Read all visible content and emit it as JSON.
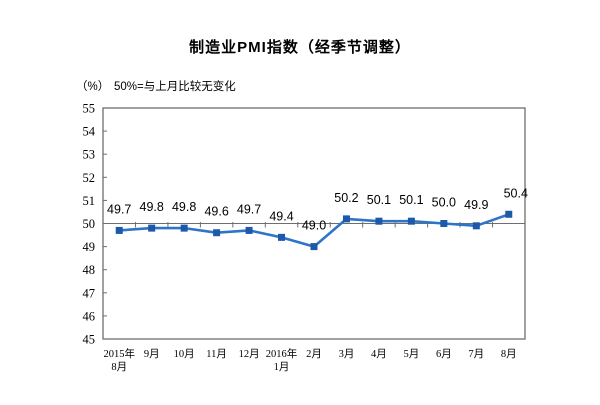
{
  "chart": {
    "title": "制造业PMI指数（经季节调整）",
    "unit_label": "（%）",
    "note": "50%=与上月比较无变化"
  },
  "chart_data": {
    "type": "line",
    "title": "制造业PMI指数（经季节调整）",
    "unit_label": "（%）",
    "note": "50%=与上月比较无变化",
    "categories": [
      "2015年\n8月",
      "9月",
      "10月",
      "11月",
      "12月",
      "2016年\n1月",
      "2月",
      "3月",
      "4月",
      "5月",
      "6月",
      "7月",
      "8月"
    ],
    "series": [
      {
        "name": "制造业PMI",
        "values": [
          49.7,
          49.8,
          49.8,
          49.6,
          49.7,
          49.4,
          49.0,
          50.2,
          50.1,
          50.1,
          50.0,
          49.9,
          50.4
        ]
      }
    ],
    "data_labels": [
      "49.7",
      "49.8",
      "49.8",
      "49.6",
      "49.7",
      "49.4",
      "49.0",
      "50.2",
      "50.1",
      "50.1",
      "50.0",
      "49.9",
      "50.4"
    ],
    "ylim": [
      45,
      55
    ],
    "ytick_step": 1,
    "yticks": [
      45,
      46,
      47,
      48,
      49,
      50,
      51,
      52,
      53,
      54,
      55
    ],
    "reference_line": 50,
    "grid": "off",
    "legend": "none",
    "colors": {
      "line": "#2E74C9",
      "marker": "#1D59A8",
      "axis": "#6E6E6E",
      "text": "#000000",
      "background": "#FFFFFF"
    }
  }
}
